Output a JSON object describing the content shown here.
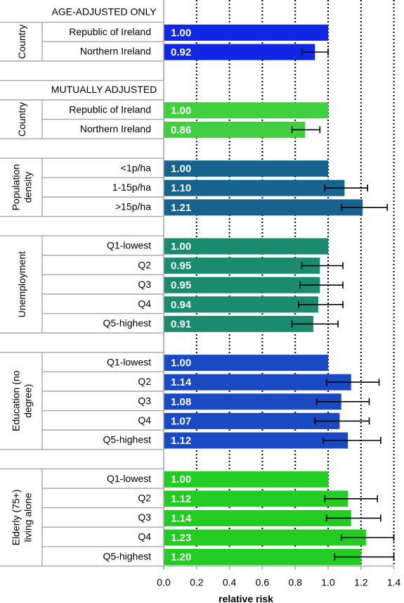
{
  "chart_data": {
    "type": "bar",
    "orientation": "horizontal",
    "xlabel": "relative risk",
    "xlim": [
      0.0,
      1.4
    ],
    "xticks": [
      "0.0",
      "0.2",
      "0.4",
      "0.6",
      "0.8",
      "1.0",
      "1.2",
      "1.4"
    ],
    "grid": "vertical dotted lines at every tick",
    "error_bars": true,
    "colors": {
      "age_adjusted": "#1127e6",
      "mutual_green": "#3fcf3f",
      "population": "#17638f",
      "unemployment": "#1b8b70",
      "education": "#1a49c4",
      "elderly": "#22cc22"
    },
    "sections": [
      {
        "header": "AGE-ADJUSTED ONLY",
        "groups": [
          {
            "label": "Country",
            "color": "#1127e6",
            "rows": [
              {
                "category": "Republic of Ireland",
                "value": 1.0,
                "value_label": "1.00"
              },
              {
                "category": "Northern Ireland",
                "value": 0.92,
                "value_label": "0.92",
                "ci": [
                  0.84,
                  1.0
                ]
              }
            ]
          }
        ]
      },
      {
        "header": "MUTUALLY ADJUSTED",
        "groups": [
          {
            "label": "Country",
            "color": "#3fcf3f",
            "rows": [
              {
                "category": "Republic of Ireland",
                "value": 1.0,
                "value_label": "1.00"
              },
              {
                "category": "Northern Ireland",
                "value": 0.86,
                "value_label": "0.86",
                "ci": [
                  0.78,
                  0.95
                ]
              }
            ]
          },
          {
            "label": "Population density",
            "color": "#17638f",
            "rows": [
              {
                "category": "<1p/ha",
                "value": 1.0,
                "value_label": "1.00"
              },
              {
                "category": "1-15p/ha",
                "value": 1.1,
                "value_label": "1.10",
                "ci": [
                  0.98,
                  1.24
                ]
              },
              {
                "category": ">15p/ha",
                "value": 1.21,
                "value_label": "1.21",
                "ci": [
                  1.08,
                  1.36
                ]
              }
            ]
          },
          {
            "label": "Unemployment",
            "color": "#1b8b70",
            "rows": [
              {
                "category": "Q1-lowest",
                "value": 1.0,
                "value_label": "1.00"
              },
              {
                "category": "Q2",
                "value": 0.95,
                "value_label": "0.95",
                "ci": [
                  0.84,
                  1.09
                ]
              },
              {
                "category": "Q3",
                "value": 0.95,
                "value_label": "0.95",
                "ci": [
                  0.83,
                  1.09
                ]
              },
              {
                "category": "Q4",
                "value": 0.94,
                "value_label": "0.94",
                "ci": [
                  0.82,
                  1.09
                ]
              },
              {
                "category": "Q5-highest",
                "value": 0.91,
                "value_label": "0.91",
                "ci": [
                  0.78,
                  1.06
                ]
              }
            ]
          },
          {
            "label": "Education (no degree)",
            "color": "#1a49c4",
            "rows": [
              {
                "category": "Q1-lowest",
                "value": 1.0,
                "value_label": "1.00"
              },
              {
                "category": "Q2",
                "value": 1.14,
                "value_label": "1.14",
                "ci": [
                  0.99,
                  1.31
                ]
              },
              {
                "category": "Q3",
                "value": 1.08,
                "value_label": "1.08",
                "ci": [
                  0.93,
                  1.25
                ]
              },
              {
                "category": "Q4",
                "value": 1.07,
                "value_label": "1.07",
                "ci": [
                  0.92,
                  1.25
                ]
              },
              {
                "category": "Q5-highest",
                "value": 1.12,
                "value_label": "1.12",
                "ci": [
                  0.97,
                  1.32
                ]
              }
            ]
          },
          {
            "label": "Elderly (75+) living alone",
            "color": "#22cc22",
            "rows": [
              {
                "category": "Q1-lowest",
                "value": 1.0,
                "value_label": "1.00"
              },
              {
                "category": "Q2",
                "value": 1.12,
                "value_label": "1.12",
                "ci": [
                  0.98,
                  1.3
                ]
              },
              {
                "category": "Q3",
                "value": 1.14,
                "value_label": "1.14",
                "ci": [
                  0.99,
                  1.32
                ]
              },
              {
                "category": "Q4",
                "value": 1.23,
                "value_label": "1.23",
                "ci": [
                  1.08,
                  1.4
                ]
              },
              {
                "category": "Q5-highest",
                "value": 1.2,
                "value_label": "1.20",
                "ci": [
                  1.04,
                  1.4
                ]
              }
            ]
          }
        ]
      }
    ]
  }
}
